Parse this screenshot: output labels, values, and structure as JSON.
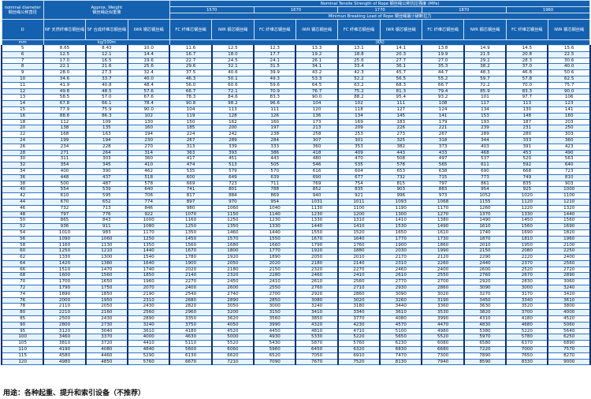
{
  "header": {
    "nominal_en": "nominal diameter",
    "nominal_cn": "钢丝绳公称直径",
    "weight_en": "Approx. Weight",
    "weight_cn": "钢丝绳近似重量",
    "strength_title": "Nominal Tensile Strength of Rope 钢丝绳公称抗拉强度 (MPa)",
    "grades": [
      "1570",
      "1670",
      "1770",
      "1870",
      "1960"
    ],
    "breaking_title": "Minimun Breaking Load of Rope 钢丝绳最小破断拉力",
    "col_d": "D",
    "col_nf": "NF 天然纤维芯钢丝绳",
    "col_sf": "SF 合成纤维芯钢丝绳",
    "col_iwr_w": "IWR 钢芯钢丝绳",
    "col_fc": "FC 纤维芯钢丝绳",
    "col_iwr": "IWR 钢芯钢丝绳",
    "unit_mm": "mm",
    "unit_weight": "kg/100m",
    "unit_load": "(KN)"
  },
  "table": {
    "rows": [
      [
        "5",
        "8.65",
        "8.43",
        "10.0",
        "11.6",
        "12.5",
        "12.3",
        "13.3",
        "13.1",
        "14.1",
        "13.8",
        "14.9",
        "14.5",
        "15.6"
      ],
      [
        "6",
        "12.5",
        "12.1",
        "14.4",
        "16.7",
        "18.0",
        "17.7",
        "19.2",
        "18.8",
        "20.3",
        "19.9",
        "21.5",
        "20.8",
        "22.5"
      ],
      [
        "7",
        "17.0",
        "16.5",
        "19.6",
        "22.7",
        "24.5",
        "24.1",
        "26.1",
        "25.6",
        "27.7",
        "27.0",
        "29.2",
        "28.3",
        "30.6"
      ],
      [
        "8",
        "22.1",
        "21.6",
        "25.6",
        "29.6",
        "32.1",
        "31.5",
        "34.1",
        "33.4",
        "36.1",
        "35.3",
        "38.2",
        "37.0",
        "40.0"
      ],
      [
        "9",
        "28.0",
        "27.3",
        "32.4",
        "37.5",
        "40.6",
        "39.9",
        "43.2",
        "42.3",
        "45.7",
        "44.7",
        "48.3",
        "46.8",
        "50.6"
      ],
      [
        "10",
        "34.6",
        "33.7",
        "40.0",
        "46.3",
        "50.1",
        "49.3",
        "53.3",
        "52.2",
        "56.5",
        "55.2",
        "59.7",
        "57.8",
        "62.5"
      ],
      [
        "11",
        "41.9",
        "40.8",
        "48.4",
        "56.0",
        "60.6",
        "59.6",
        "64.5",
        "63.2",
        "68.3",
        "66.7",
        "72.2",
        "70.0",
        "75.7"
      ],
      [
        "12",
        "49.8",
        "48.5",
        "57.6",
        "66.7",
        "72.1",
        "70.9",
        "76.7",
        "75.2",
        "81.3",
        "79.4",
        "85.9",
        "83.3",
        "90.0"
      ],
      [
        "13",
        "58.5",
        "57.0",
        "67.6",
        "78.3",
        "84.6",
        "83.3",
        "90.0",
        "88.2",
        "95.4",
        "93.2",
        "101",
        "97.7",
        "106"
      ],
      [
        "14",
        "67.8",
        "66.1",
        "78.4",
        "90.8",
        "98.2",
        "96.6",
        "104",
        "102",
        "111",
        "108",
        "117",
        "113",
        "123"
      ],
      [
        "15",
        "77.9",
        "75.9",
        "90.0",
        "104",
        "113",
        "111",
        "120",
        "118",
        "127",
        "124",
        "134",
        "130",
        "141"
      ],
      [
        "16",
        "88.6",
        "86.3",
        "102",
        "119",
        "128",
        "126",
        "136",
        "134",
        "145",
        "141",
        "153",
        "148",
        "160"
      ],
      [
        "18",
        "112",
        "109",
        "130",
        "150",
        "162",
        "160",
        "173",
        "169",
        "183",
        "179",
        "193",
        "187",
        "203"
      ],
      [
        "20",
        "138",
        "135",
        "160",
        "185",
        "200",
        "197",
        "213",
        "209",
        "226",
        "221",
        "239",
        "231",
        "250"
      ],
      [
        "22",
        "168",
        "163",
        "194",
        "224",
        "242",
        "238",
        "258",
        "253",
        "273",
        "267",
        "289",
        "280",
        "303"
      ],
      [
        "24",
        "199",
        "194",
        "230",
        "267",
        "289",
        "284",
        "307",
        "301",
        "325",
        "318",
        "344",
        "333",
        "360"
      ],
      [
        "26",
        "234",
        "228",
        "270",
        "313",
        "339",
        "333",
        "360",
        "353",
        "382",
        "373",
        "403",
        "391",
        "423"
      ],
      [
        "28",
        "271",
        "264",
        "314",
        "363",
        "393",
        "386",
        "418",
        "409",
        "443",
        "433",
        "468",
        "453",
        "490"
      ],
      [
        "30",
        "311",
        "303",
        "360",
        "417",
        "451",
        "443",
        "480",
        "470",
        "508",
        "497",
        "537",
        "520",
        "563"
      ],
      [
        "32",
        "354",
        "345",
        "410",
        "474",
        "513",
        "505",
        "546",
        "535",
        "578",
        "565",
        "611",
        "592",
        "640"
      ],
      [
        "34",
        "400",
        "390",
        "462",
        "535",
        "579",
        "570",
        "616",
        "604",
        "653",
        "638",
        "690",
        "668",
        "723"
      ],
      [
        "36",
        "448",
        "437",
        "518",
        "600",
        "649",
        "639",
        "690",
        "677",
        "732",
        "715",
        "773",
        "749",
        "810"
      ],
      [
        "38",
        "500",
        "487",
        "578",
        "669",
        "723",
        "711",
        "769",
        "754",
        "815",
        "797",
        "861",
        "835",
        "903"
      ],
      [
        "40",
        "554",
        "539",
        "640",
        "741",
        "801",
        "788",
        "852",
        "835",
        "903",
        "883",
        "954",
        "925",
        "1000"
      ],
      [
        "42",
        "610",
        "595",
        "706",
        "817",
        "884",
        "869",
        "940",
        "921",
        "996",
        "973",
        "1052",
        "1020",
        "1100"
      ],
      [
        "44",
        "670",
        "652",
        "774",
        "897",
        "970",
        "954",
        "1031",
        "1011",
        "1093",
        "1068",
        "1155",
        "1120",
        "1210"
      ],
      [
        "46",
        "732",
        "713",
        "846",
        "980",
        "1060",
        "1040",
        "1130",
        "1100",
        "1190",
        "1170",
        "1260",
        "1220",
        "1320"
      ],
      [
        "48",
        "797",
        "776",
        "922",
        "1070",
        "1150",
        "1140",
        "1230",
        "1200",
        "1300",
        "1270",
        "1370",
        "1330",
        "1440"
      ],
      [
        "50",
        "865",
        "843",
        "1000",
        "1160",
        "1250",
        "1230",
        "1330",
        "1310",
        "1410",
        "1380",
        "1490",
        "1450",
        "1560"
      ],
      [
        "52",
        "936",
        "911",
        "1080",
        "1250",
        "1350",
        "1330",
        "1440",
        "1410",
        "1530",
        "1490",
        "1610",
        "1560",
        "1690"
      ],
      [
        "54",
        "1010",
        "983",
        "1170",
        "1350",
        "1460",
        "1440",
        "1550",
        "1520",
        "1650",
        "1610",
        "1740",
        "1690",
        "1820"
      ],
      [
        "56",
        "1090",
        "1060",
        "1250",
        "1450",
        "1570",
        "1550",
        "1670",
        "1640",
        "1770",
        "1730",
        "1870",
        "1810",
        "1960"
      ],
      [
        "58",
        "1160",
        "1130",
        "1350",
        "1560",
        "1680",
        "1660",
        "1790",
        "1760",
        "1900",
        "1860",
        "2010",
        "1950",
        "2100"
      ],
      [
        "60",
        "1250",
        "1210",
        "1440",
        "1670",
        "1800",
        "1770",
        "1920",
        "1880",
        "2030",
        "1990",
        "2150",
        "2080",
        "2250"
      ],
      [
        "62",
        "1330",
        "1300",
        "1540",
        "1780",
        "1920",
        "1890",
        "2050",
        "2010",
        "2170",
        "2120",
        "2290",
        "2220",
        "2400"
      ],
      [
        "64",
        "1420",
        "1380",
        "1640",
        "1900",
        "2050",
        "2020",
        "2180",
        "2140",
        "2310",
        "2260",
        "2440",
        "2370",
        "2560"
      ],
      [
        "66",
        "1510",
        "1470",
        "1740",
        "2020",
        "2180",
        "2150",
        "2320",
        "2270",
        "2460",
        "2400",
        "2600",
        "2520",
        "2720"
      ],
      [
        "68",
        "1600",
        "1560",
        "1850",
        "2140",
        "2320",
        "2280",
        "2460",
        "2410",
        "2610",
        "2550",
        "2760",
        "2670",
        "2890"
      ],
      [
        "70",
        "1700",
        "1650",
        "1960",
        "2270",
        "2450",
        "2410",
        "2610",
        "2560",
        "2770",
        "2700",
        "2920",
        "2830",
        "3060"
      ],
      [
        "72",
        "1790",
        "1750",
        "2070",
        "2400",
        "2600",
        "2550",
        "2760",
        "2710",
        "2930",
        "2860",
        "3090",
        "3000",
        "3240"
      ],
      [
        "74",
        "1890",
        "1850",
        "2190",
        "2540",
        "2740",
        "2700",
        "2920",
        "2860",
        "3090",
        "3020",
        "3270",
        "3170",
        "3420"
      ],
      [
        "76",
        "2000",
        "1950",
        "2310",
        "2680",
        "2890",
        "2850",
        "3080",
        "3020",
        "3260",
        "3190",
        "3450",
        "3340",
        "3610"
      ],
      [
        "78",
        "2110",
        "2050",
        "2430",
        "2820",
        "3050",
        "3000",
        "3240",
        "3180",
        "3440",
        "3360",
        "3630",
        "3520",
        "3800"
      ],
      [
        "80",
        "2210",
        "2160",
        "2560",
        "2960",
        "3200",
        "3150",
        "3410",
        "3340",
        "3610",
        "3530",
        "3820",
        "3700",
        "4000"
      ],
      [
        "85",
        "2500",
        "2430",
        "2890",
        "3350",
        "3620",
        "3560",
        "3850",
        "3770",
        "4080",
        "3990",
        "4310",
        "4180",
        "4520"
      ],
      [
        "90",
        "2800",
        "2730",
        "3240",
        "3750",
        "4050",
        "3990",
        "4320",
        "4230",
        "4570",
        "4470",
        "4830",
        "4680",
        "5060"
      ],
      [
        "95",
        "3120",
        "3040",
        "3610",
        "4180",
        "4520",
        "4450",
        "4810",
        "4710",
        "5100",
        "4980",
        "5380",
        "5220",
        "5640"
      ],
      [
        "100",
        "3460",
        "3370",
        "4000",
        "4630",
        "5000",
        "4930",
        "5330",
        "5220",
        "5650",
        "5520",
        "5970",
        "5780",
        "6250"
      ],
      [
        "105",
        "3810",
        "3720",
        "4410",
        "5110",
        "5520",
        "5430",
        "5870",
        "5760",
        "6230",
        "6080",
        "6580",
        "6370",
        "6890"
      ],
      [
        "110",
        "4190",
        "4080",
        "4840",
        "5600",
        "6060",
        "5960",
        "6450",
        "6320",
        "6830",
        "6680",
        "7220",
        "7000",
        "7570"
      ],
      [
        "115",
        "4580",
        "4460",
        "5290",
        "6130",
        "6620",
        "6520",
        "7050",
        "6910",
        "7470",
        "7300",
        "7890",
        "7650",
        "8270"
      ],
      [
        "120",
        "4980",
        "4850",
        "5760",
        "6670",
        "7210",
        "7090",
        "7670",
        "7520",
        "8130",
        "7940",
        "8590",
        "8330",
        "9000"
      ]
    ]
  },
  "footer": "用途：各种起重、提升和索引设备（不推荐）",
  "colors": {
    "header_blue": "#1461b0",
    "row_alt": "#e5f3fc",
    "rule": "#0b2f73"
  }
}
